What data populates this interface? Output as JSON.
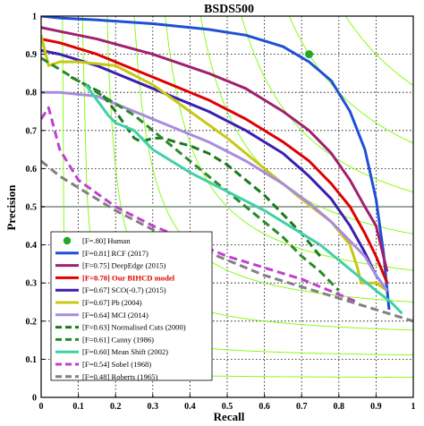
{
  "chart_data": {
    "type": "line",
    "title": "BSDS500",
    "xlabel": "Recall",
    "ylabel": "Precision",
    "xlim": [
      0,
      1
    ],
    "ylim": [
      0,
      1
    ],
    "xticks": [
      "0",
      "0.1",
      "0.2",
      "0.3",
      "0.4",
      "0.5",
      "0.6",
      "0.7",
      "0.8",
      "0.9",
      "1"
    ],
    "yticks": [
      "0",
      "0.1",
      "0.2",
      "0.3",
      "0.4",
      "0.5",
      "0.6",
      "0.7",
      "0.8",
      "0.9",
      "1"
    ],
    "grid": true,
    "grid_style": "dotted",
    "iso_f_contours": {
      "color": "#7CFC00",
      "levels": [
        0.1,
        0.2,
        0.3,
        0.4,
        0.5,
        0.6,
        0.7,
        0.8,
        0.9
      ]
    },
    "reference_line": {
      "y": 0.5,
      "color": "#9aaa9a"
    },
    "legend_position": "bottom-left",
    "point": {
      "label": "[F=.80] Human",
      "x": 0.72,
      "y": 0.9,
      "color": "#22a822"
    },
    "series": [
      {
        "name": "[F=0.81] RCF (2017)",
        "color": "#1f4fd8",
        "dash": "solid",
        "x": [
          0.0,
          0.05,
          0.15,
          0.3,
          0.45,
          0.55,
          0.65,
          0.72,
          0.78,
          0.83,
          0.87,
          0.9,
          0.92,
          0.935
        ],
        "y": [
          1.0,
          0.995,
          0.99,
          0.98,
          0.965,
          0.95,
          0.92,
          0.88,
          0.83,
          0.75,
          0.65,
          0.52,
          0.38,
          0.23
        ]
      },
      {
        "name": "[F=0.75] DeepEdge (2015)",
        "color": "#a0206e",
        "dash": "solid",
        "x": [
          0.0,
          0.05,
          0.15,
          0.3,
          0.45,
          0.55,
          0.65,
          0.72,
          0.78,
          0.83,
          0.87,
          0.9,
          0.93
        ],
        "y": [
          0.97,
          0.96,
          0.94,
          0.9,
          0.85,
          0.81,
          0.75,
          0.7,
          0.64,
          0.57,
          0.5,
          0.45,
          0.33
        ]
      },
      {
        "name": "[F=0.70] Our BIHCD model",
        "color": "#e00000",
        "dash": "solid",
        "highlight": true,
        "x": [
          0.0,
          0.05,
          0.15,
          0.3,
          0.45,
          0.55,
          0.65,
          0.72,
          0.78,
          0.83,
          0.87,
          0.9,
          0.93
        ],
        "y": [
          0.94,
          0.93,
          0.9,
          0.84,
          0.78,
          0.73,
          0.67,
          0.62,
          0.56,
          0.5,
          0.43,
          0.37,
          0.3
        ]
      },
      {
        "name": "[F=0.67] SCO(-0.7) (2015)",
        "color": "#3a1fb0",
        "dash": "solid",
        "x": [
          0.0,
          0.05,
          0.15,
          0.3,
          0.45,
          0.55,
          0.65,
          0.72,
          0.78,
          0.83,
          0.87,
          0.9,
          0.93
        ],
        "y": [
          0.91,
          0.9,
          0.87,
          0.81,
          0.75,
          0.7,
          0.64,
          0.58,
          0.52,
          0.45,
          0.38,
          0.32,
          0.28
        ]
      },
      {
        "name": "[F=0.67] Pb (2004)",
        "color": "#c8c814",
        "dash": "solid",
        "x": [
          0.0,
          0.02,
          0.05,
          0.1,
          0.2,
          0.3,
          0.4,
          0.5,
          0.6,
          0.7,
          0.78,
          0.83,
          0.85,
          0.86,
          0.9,
          0.93
        ],
        "y": [
          0.95,
          0.87,
          0.88,
          0.88,
          0.87,
          0.82,
          0.75,
          0.68,
          0.6,
          0.52,
          0.46,
          0.4,
          0.34,
          0.3,
          0.3,
          0.28
        ]
      },
      {
        "name": "[F=0.64] MCI (2014)",
        "color": "#a88ce0",
        "dash": "solid",
        "x": [
          0.0,
          0.05,
          0.15,
          0.3,
          0.45,
          0.55,
          0.65,
          0.72,
          0.78,
          0.83,
          0.87,
          0.9,
          0.93
        ],
        "y": [
          0.8,
          0.8,
          0.79,
          0.73,
          0.67,
          0.62,
          0.56,
          0.51,
          0.46,
          0.41,
          0.37,
          0.32,
          0.28
        ]
      },
      {
        "name": "[F=0.63] Normalised Cuts (2000)",
        "color": "#1a7a1a",
        "dash": "dashed",
        "x": [
          0.08,
          0.12,
          0.16,
          0.2,
          0.25,
          0.27,
          0.3,
          0.33,
          0.36,
          0.4,
          0.45,
          0.5,
          0.55,
          0.6,
          0.65,
          0.7,
          0.75
        ],
        "y": [
          0.84,
          0.82,
          0.8,
          0.75,
          0.68,
          0.67,
          0.68,
          0.68,
          0.67,
          0.66,
          0.64,
          0.61,
          0.57,
          0.53,
          0.48,
          0.43,
          0.37
        ]
      },
      {
        "name": "[F=0.61] Canny (1986)",
        "color": "#2a8a2a",
        "dash": "dashed",
        "x": [
          0.0,
          0.05,
          0.1,
          0.15,
          0.2,
          0.25,
          0.3,
          0.35,
          0.4,
          0.45,
          0.5,
          0.55,
          0.6,
          0.65,
          0.7,
          0.75,
          0.8
        ],
        "y": [
          0.89,
          0.86,
          0.83,
          0.8,
          0.77,
          0.74,
          0.7,
          0.66,
          0.62,
          0.58,
          0.54,
          0.5,
          0.46,
          0.42,
          0.37,
          0.33,
          0.28
        ]
      },
      {
        "name": "[F=0.60] Mean Shift (2002)",
        "color": "#40d0a8",
        "dash": "solid",
        "x": [
          0.12,
          0.15,
          0.18,
          0.2,
          0.25,
          0.3,
          0.4,
          0.5,
          0.6,
          0.7,
          0.75,
          0.8,
          0.85,
          0.9,
          0.94,
          0.97
        ],
        "y": [
          0.82,
          0.78,
          0.74,
          0.72,
          0.7,
          0.65,
          0.59,
          0.54,
          0.49,
          0.43,
          0.4,
          0.36,
          0.32,
          0.28,
          0.25,
          0.22
        ]
      },
      {
        "name": "[F=0.54] Sobel (1968)",
        "color": "#c040d0",
        "dash": "dashed",
        "x": [
          0.0,
          0.02,
          0.05,
          0.1,
          0.2,
          0.3,
          0.4,
          0.5,
          0.6,
          0.7,
          0.8,
          0.85
        ],
        "y": [
          0.73,
          0.76,
          0.65,
          0.57,
          0.5,
          0.45,
          0.41,
          0.37,
          0.34,
          0.31,
          0.27,
          0.25
        ]
      },
      {
        "name": "[F=0.48] Roberts (1965)",
        "color": "#808080",
        "dash": "dashed",
        "x": [
          0.0,
          0.05,
          0.1,
          0.2,
          0.3,
          0.4,
          0.5,
          0.6,
          0.7,
          0.8,
          0.9,
          1.0
        ],
        "y": [
          0.62,
          0.58,
          0.55,
          0.49,
          0.44,
          0.4,
          0.36,
          0.32,
          0.29,
          0.26,
          0.23,
          0.2
        ]
      }
    ]
  }
}
